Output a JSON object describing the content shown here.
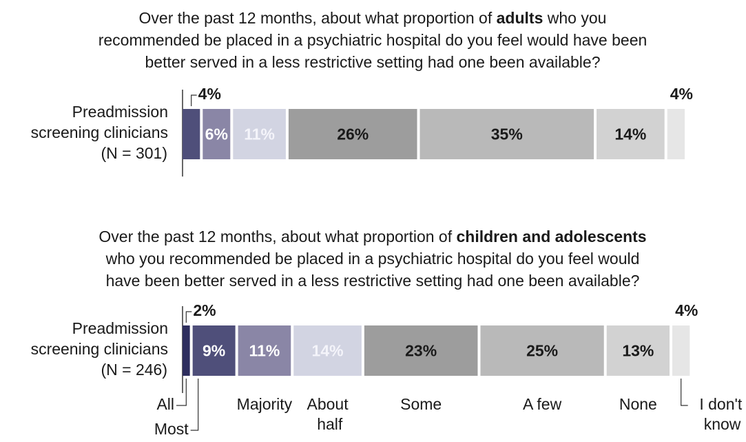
{
  "chart_data": [
    {
      "type": "bar",
      "stacked": true,
      "orientation": "horizontal",
      "title": [
        [
          {
            "text": "Over the past 12 months, about what proportion of ",
            "bold": false
          },
          {
            "text": "adults",
            "bold": true
          },
          {
            "text": " who you",
            "bold": false
          }
        ],
        [
          {
            "text": "recommended be placed in a psychiatric hospital do you feel would have been",
            "bold": false
          }
        ],
        [
          {
            "text": "better served in a less restrictive setting had one been available?",
            "bold": false
          }
        ]
      ],
      "row_label": [
        "Preadmission",
        "screening clinicians",
        "(N = 301)"
      ],
      "xlim": [
        0,
        100
      ],
      "colors": [
        "#2e2e5e",
        "#4f4f7a",
        "#8a86a6",
        "#d2d4e2",
        "#9d9d9d",
        "#b9b9b9",
        "#d2d2d2",
        "#e6e6e6"
      ],
      "values": [
        null,
        4,
        6,
        11,
        26,
        35,
        14,
        4
      ],
      "value_labels": [
        null,
        "4%",
        "6%",
        "11%",
        "26%",
        "35%",
        "14%",
        "4%"
      ]
    },
    {
      "type": "bar",
      "stacked": true,
      "orientation": "horizontal",
      "title": [
        [
          {
            "text": "Over the past 12 months, about what proportion of ",
            "bold": false
          },
          {
            "text": "children and adolescents",
            "bold": true
          }
        ],
        [
          {
            "text": "who you recommended be placed in a psychiatric hospital do you feel would",
            "bold": false
          }
        ],
        [
          {
            "text": "have been better served in a less restrictive setting had one been available?",
            "bold": false
          }
        ]
      ],
      "row_label": [
        "Preadmission",
        "screening clinicians",
        "(N = 246)"
      ],
      "xlim": [
        0,
        100
      ],
      "colors": [
        "#2e2e5e",
        "#4f4f7a",
        "#8a86a6",
        "#d2d4e2",
        "#9d9d9d",
        "#b9b9b9",
        "#d2d2d2",
        "#e6e6e6"
      ],
      "categories": [
        "All",
        "Most",
        "Majority",
        "About half",
        "Some",
        "A few",
        "None",
        "I don't know"
      ],
      "values": [
        2,
        9,
        11,
        14,
        23,
        25,
        13,
        4
      ],
      "value_labels": [
        "2%",
        "9%",
        "11%",
        "14%",
        "23%",
        "25%",
        "13%",
        "4%"
      ]
    }
  ]
}
